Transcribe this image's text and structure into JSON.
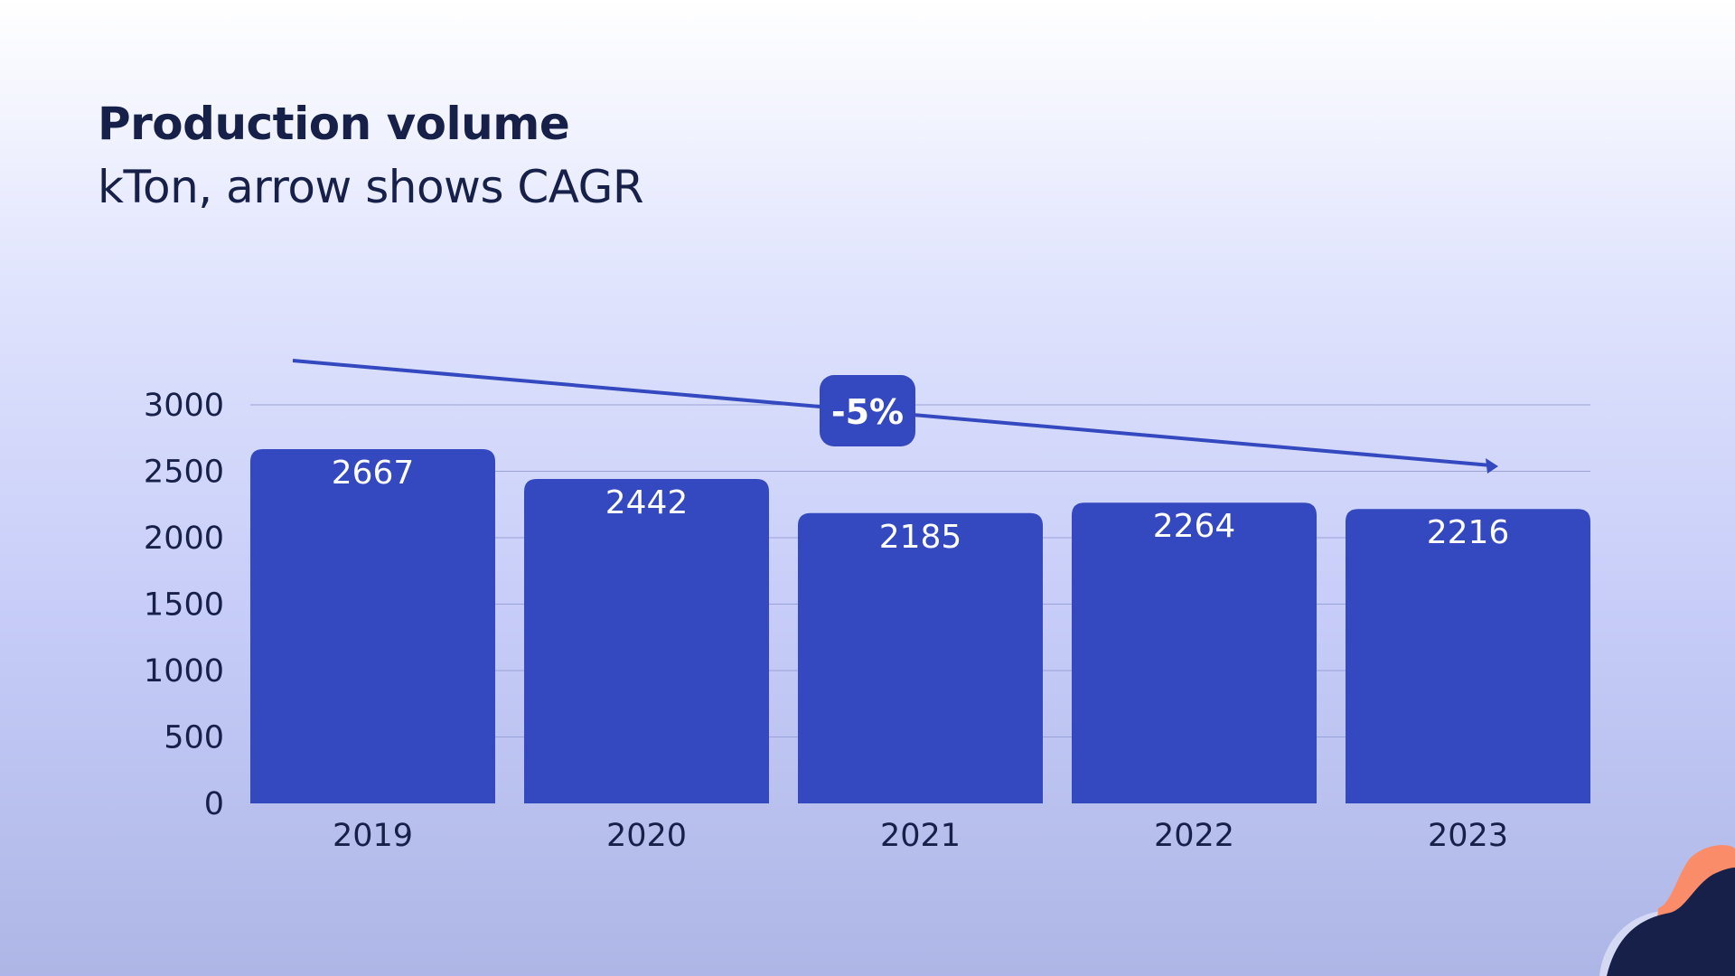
{
  "chart_data": {
    "type": "bar",
    "title": "Production volume",
    "subtitle": "kTon, arrow shows CAGR",
    "categories": [
      "2019",
      "2020",
      "2021",
      "2022",
      "2023"
    ],
    "values": [
      2667,
      2442,
      2185,
      2264,
      2216
    ],
    "ylim": [
      0,
      3000
    ],
    "yticks": [
      0,
      500,
      1000,
      1500,
      2000,
      2500,
      3000
    ],
    "grid": true,
    "annotation": {
      "type": "cagr-arrow",
      "label": "-5%",
      "from": "2019",
      "to": "2023"
    },
    "xlabel": "",
    "ylabel": ""
  },
  "colors": {
    "bar": "#3449bf",
    "grid": "#9aa3d6",
    "arrow": "#3449bf",
    "text": "#172049",
    "decor_dark": "#172049",
    "decor_orange": "#fa8c6a"
  }
}
